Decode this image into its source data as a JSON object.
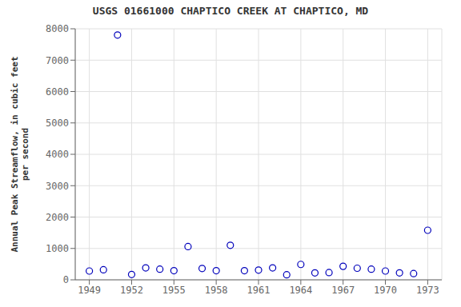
{
  "chart_data": {
    "type": "scatter",
    "title": "USGS 01661000 CHAPTICO CREEK AT CHAPTICO, MD",
    "ylabel": "Annual Peak Streamflow, in cubic feet\nper second",
    "x": [
      1949,
      1950,
      1951,
      1952,
      1953,
      1954,
      1955,
      1956,
      1957,
      1958,
      1959,
      1960,
      1961,
      1962,
      1963,
      1964,
      1965,
      1966,
      1967,
      1968,
      1969,
      1970,
      1971,
      1972,
      1973
    ],
    "values": [
      280,
      320,
      7800,
      170,
      380,
      340,
      290,
      1060,
      360,
      290,
      1100,
      290,
      310,
      380,
      160,
      490,
      220,
      230,
      430,
      370,
      340,
      280,
      220,
      200,
      1580
    ],
    "xlim": [
      1948,
      1974
    ],
    "xticks": [
      1949,
      1952,
      1955,
      1958,
      1961,
      1964,
      1967,
      1970,
      1973
    ],
    "ylim": [
      0,
      8000
    ],
    "yticks": [
      0,
      1000,
      2000,
      3000,
      4000,
      5000,
      6000,
      7000,
      8000
    ],
    "color": "#0000bb",
    "marker": "circle",
    "grid": true
  }
}
